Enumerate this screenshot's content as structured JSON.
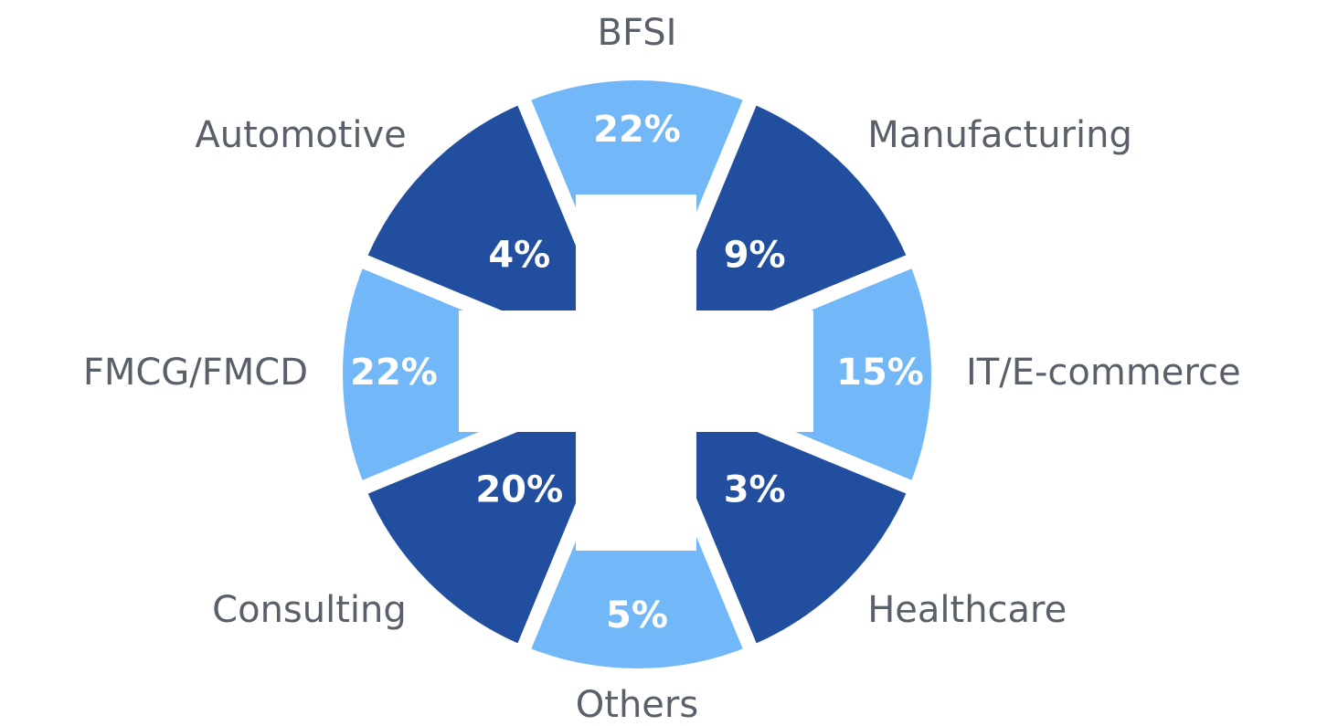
{
  "chart_data": {
    "type": "ring",
    "categories": [
      "BFSI",
      "Manufacturing",
      "IT/E-commerce",
      "Healthcare",
      "Others",
      "Consulting",
      "FMCG/FMCD",
      "Automotive"
    ],
    "values": [
      22,
      9,
      15,
      3,
      5,
      20,
      22,
      4
    ],
    "value_labels": [
      "22%",
      "9%",
      "15%",
      "3%",
      "5%",
      "20%",
      "22%",
      "4%"
    ],
    "colors": [
      "#72b8f8",
      "#214e9e",
      "#72b8f8",
      "#214e9e",
      "#72b8f8",
      "#214e9e",
      "#72b8f8",
      "#214e9e"
    ]
  }
}
